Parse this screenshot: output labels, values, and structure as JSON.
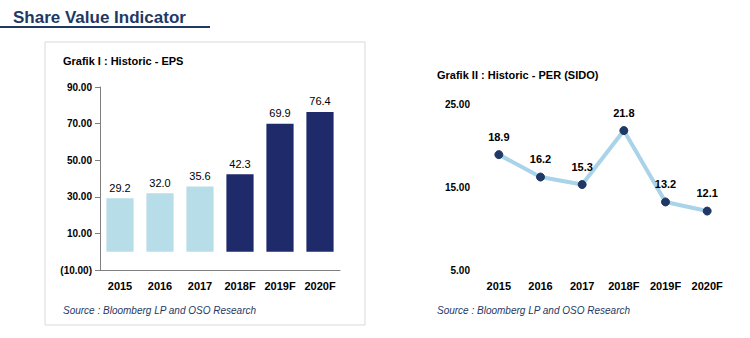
{
  "page_title": "Share Value Indicator",
  "chart_data": [
    {
      "type": "bar",
      "title": "Grafik I : Historic - EPS",
      "annotation": "Source : Bloomberg LP and OSO Research",
      "categories": [
        "2015",
        "2016",
        "2017",
        "2018F",
        "2019F",
        "2020F"
      ],
      "values": [
        29.2,
        32.0,
        35.6,
        42.3,
        69.9,
        76.4
      ],
      "value_labels": [
        "29.2",
        "32.0",
        "35.6",
        "42.3",
        "69.9",
        "76.4"
      ],
      "colors": [
        "#b7dde8",
        "#b7dde8",
        "#b7dde8",
        "#1f2a6b",
        "#1f2a6b",
        "#1f2a6b"
      ],
      "ylim": [
        -10,
        90
      ],
      "yticks": [
        {
          "value": -10,
          "label": "(10.00)"
        },
        {
          "value": 10,
          "label": "10.00"
        },
        {
          "value": 30,
          "label": "30.00"
        },
        {
          "value": 50,
          "label": "50.00"
        },
        {
          "value": 70,
          "label": "70.00"
        },
        {
          "value": 90,
          "label": "90.00"
        }
      ],
      "grid": false,
      "data_labels": true
    },
    {
      "type": "line",
      "title": "Grafik II : Historic - PER (SIDO)",
      "annotation": "Source : Bloomberg LP and OSO Research",
      "categories": [
        "2015",
        "2016",
        "2017",
        "2018F",
        "2019F",
        "2020F"
      ],
      "values": [
        18.9,
        16.2,
        15.3,
        21.8,
        13.2,
        12.1
      ],
      "color": "#a9d3e8",
      "marker": "circle",
      "ylim": [
        5,
        25
      ],
      "yticks": [
        {
          "value": 5,
          "label": "5.00"
        },
        {
          "value": 15,
          "label": "15.00"
        },
        {
          "value": 25,
          "label": "25.00"
        }
      ],
      "grid": false,
      "data_labels": true
    }
  ]
}
